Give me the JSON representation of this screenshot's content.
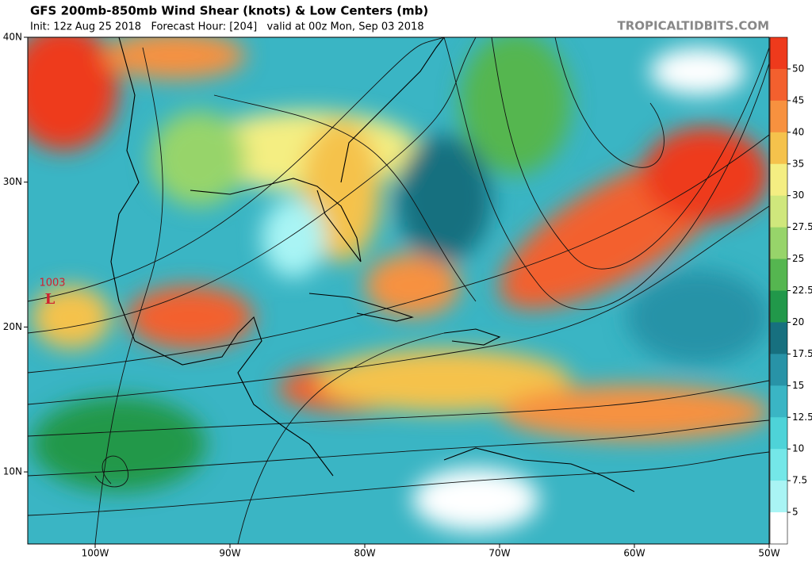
{
  "header": {
    "title": "GFS 200mb-850mb Wind Shear (knots) & Low Centers (mb)",
    "subtitle": "Init: 12z Aug 25 2018   Forecast Hour: [204]   valid at 00z Mon, Sep 03 2018",
    "site": "TROPICALTIDBITS.COM"
  },
  "map": {
    "lat_labels": [
      "40N",
      "30N",
      "20N",
      "10N"
    ],
    "lon_labels": [
      "100W",
      "90W",
      "80W",
      "70W",
      "60W",
      "50W"
    ],
    "low_centers": [
      {
        "pressure": "1003",
        "symbol": "L"
      }
    ]
  },
  "colorbar": {
    "levels": [
      50,
      45,
      40,
      35,
      30,
      27.5,
      25,
      22.5,
      20,
      17.5,
      15,
      12.5,
      10,
      7.5,
      5
    ],
    "colors": [
      "#ee3a1c",
      "#f3602e",
      "#f7913f",
      "#f5c24c",
      "#f4ee82",
      "#cfe77c",
      "#97d46a",
      "#55b650",
      "#21984a",
      "#17707f",
      "#2893a7",
      "#3ab5c4",
      "#4ed3d8",
      "#74e7e8",
      "#a9f4f4",
      "#ffffff"
    ]
  }
}
